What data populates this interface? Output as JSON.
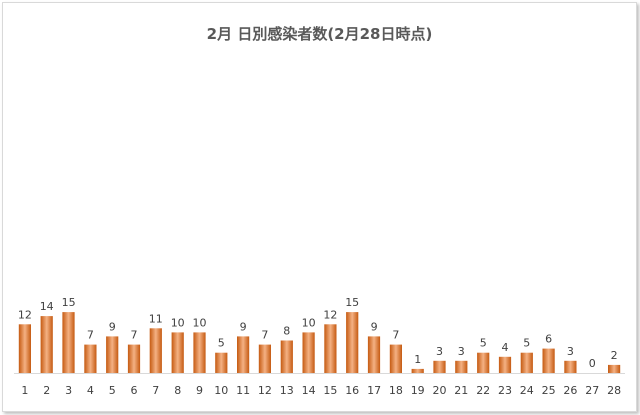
{
  "chart_data": {
    "type": "bar",
    "title": "2月 日別感染者数(2月28日時点)",
    "xlabel": "",
    "ylabel": "",
    "categories": [
      "1",
      "2",
      "3",
      "4",
      "5",
      "6",
      "7",
      "8",
      "9",
      "10",
      "11",
      "12",
      "13",
      "14",
      "15",
      "16",
      "17",
      "18",
      "19",
      "20",
      "21",
      "22",
      "23",
      "24",
      "25",
      "26",
      "27",
      "28"
    ],
    "values": [
      12,
      14,
      15,
      7,
      9,
      7,
      11,
      10,
      10,
      5,
      9,
      7,
      8,
      10,
      12,
      15,
      9,
      7,
      1,
      3,
      3,
      5,
      4,
      5,
      6,
      3,
      0,
      2
    ],
    "ylim": [
      0,
      80
    ],
    "grid": false,
    "legend": "none",
    "data_labels": true,
    "bar_color": "#C55A11",
    "bar_color_light": "#F4B183"
  }
}
